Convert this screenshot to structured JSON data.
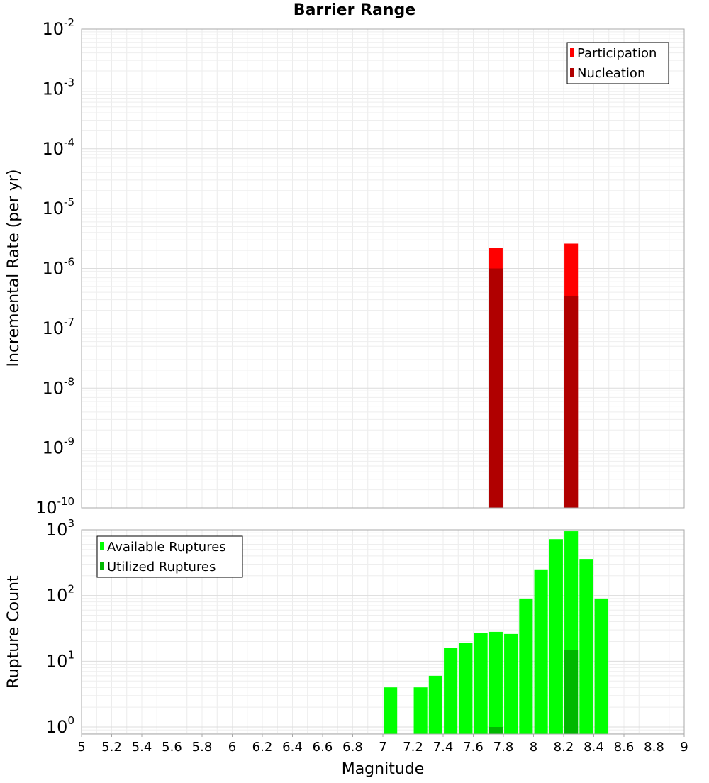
{
  "chart_data": [
    {
      "type": "bar",
      "title": "Barrier Range",
      "xlabel": "",
      "ylabel": "Incremental Rate (per yr)",
      "yscale": "log",
      "ylim": [
        1e-10,
        0.01
      ],
      "xlim": [
        5,
        9
      ],
      "grid": true,
      "legend_position": "top-right",
      "y_tick_labels": [
        {
          "base": "10",
          "exp": "-2"
        },
        {
          "base": "10",
          "exp": "-3"
        },
        {
          "base": "10",
          "exp": "-4"
        },
        {
          "base": "10",
          "exp": "-5"
        },
        {
          "base": "10",
          "exp": "-6"
        },
        {
          "base": "10",
          "exp": "-7"
        },
        {
          "base": "10",
          "exp": "-8"
        },
        {
          "base": "10",
          "exp": "-9"
        },
        {
          "base": "10",
          "exp": "-10"
        }
      ],
      "series": [
        {
          "name": "Participation",
          "color": "#ff0000",
          "x": [
            7.75,
            8.25
          ],
          "values": [
            2.2e-06,
            2.6e-06
          ]
        },
        {
          "name": "Nucleation",
          "color": "#b00000",
          "x": [
            7.75,
            8.25
          ],
          "values": [
            1e-06,
            3.5e-07
          ]
        }
      ]
    },
    {
      "type": "bar",
      "title": "",
      "xlabel": "Magnitude",
      "ylabel": "Rupture Count",
      "yscale": "log",
      "ylim": [
        0.78,
        1000
      ],
      "xlim": [
        5,
        9
      ],
      "grid": true,
      "legend_position": "top-left",
      "x_tick_labels": [
        "5",
        "5.2",
        "5.4",
        "5.6",
        "5.8",
        "6",
        "6.2",
        "6.4",
        "6.6",
        "6.8",
        "7",
        "7.2",
        "7.4",
        "7.6",
        "7.8",
        "8",
        "8.2",
        "8.4",
        "8.6",
        "8.8",
        "9"
      ],
      "y_tick_labels": [
        {
          "base": "10",
          "exp": "3"
        },
        {
          "base": "10",
          "exp": "2"
        },
        {
          "base": "10",
          "exp": "1"
        },
        {
          "base": "10",
          "exp": "0"
        }
      ],
      "series": [
        {
          "name": "Available Ruptures",
          "color": "#00ff00",
          "x": [
            7.05,
            7.25,
            7.35,
            7.45,
            7.55,
            7.65,
            7.75,
            7.85,
            7.95,
            8.05,
            8.15,
            8.25,
            8.35,
            8.45
          ],
          "values": [
            4,
            4,
            6,
            16,
            19,
            27,
            28,
            26,
            90,
            250,
            720,
            950,
            360,
            90
          ]
        },
        {
          "name": "Utilized Ruptures",
          "color": "#00b800",
          "x": [
            7.75,
            8.25
          ],
          "values": [
            1,
            15
          ]
        }
      ]
    }
  ]
}
